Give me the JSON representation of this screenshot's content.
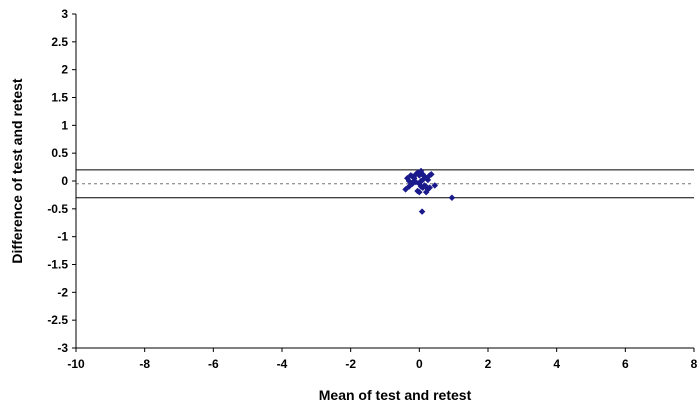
{
  "chart_data": {
    "type": "scatter",
    "title": "",
    "xlabel": "Mean of test and retest",
    "ylabel": "Difference of test and retest",
    "xlim": [
      -10,
      8
    ],
    "ylim": [
      -3,
      3
    ],
    "x_ticks": [
      -10,
      -8,
      -6,
      -4,
      -2,
      0,
      2,
      4,
      6,
      8
    ],
    "y_ticks": [
      3,
      2.5,
      2,
      1.5,
      1,
      0.5,
      0,
      -0.5,
      -1,
      -1.5,
      -2,
      -2.5,
      -3
    ],
    "grid": false,
    "legend": "none",
    "reference_lines": [
      {
        "y": 0.2,
        "style": "solid"
      },
      {
        "y": -0.05,
        "style": "dashed"
      },
      {
        "y": -0.3,
        "style": "solid"
      }
    ],
    "series": [
      {
        "color": "#1a1a8c",
        "points": [
          {
            "x": -0.35,
            "y": 0.05
          },
          {
            "x": -0.25,
            "y": 0.1
          },
          {
            "x": -0.2,
            "y": 0.08
          },
          {
            "x": -0.15,
            "y": 0.05
          },
          {
            "x": -0.1,
            "y": 0.12
          },
          {
            "x": -0.05,
            "y": 0.15
          },
          {
            "x": 0.0,
            "y": 0.1
          },
          {
            "x": 0.05,
            "y": 0.18
          },
          {
            "x": 0.1,
            "y": 0.12
          },
          {
            "x": 0.15,
            "y": 0.08
          },
          {
            "x": 0.2,
            "y": 0.05
          },
          {
            "x": 0.3,
            "y": 0.1
          },
          {
            "x": 0.35,
            "y": 0.12
          },
          {
            "x": -0.3,
            "y": -0.1
          },
          {
            "x": -0.4,
            "y": -0.15
          },
          {
            "x": -0.2,
            "y": -0.05
          },
          {
            "x": -0.1,
            "y": -0.02
          },
          {
            "x": 0.0,
            "y": -0.05
          },
          {
            "x": 0.05,
            "y": -0.1
          },
          {
            "x": 0.1,
            "y": -0.12
          },
          {
            "x": 0.15,
            "y": -0.08
          },
          {
            "x": 0.2,
            "y": -0.1
          },
          {
            "x": 0.25,
            "y": -0.15
          },
          {
            "x": 0.3,
            "y": -0.12
          },
          {
            "x": 0.45,
            "y": -0.08
          },
          {
            "x": -0.05,
            "y": -0.18
          },
          {
            "x": 0.05,
            "y": 0.0
          },
          {
            "x": 0.1,
            "y": 0.02
          },
          {
            "x": -0.15,
            "y": 0.0
          },
          {
            "x": 0.2,
            "y": -0.2
          },
          {
            "x": 0.0,
            "y": -0.2
          },
          {
            "x": 0.08,
            "y": -0.55
          },
          {
            "x": 0.95,
            "y": -0.3
          },
          {
            "x": -0.3,
            "y": 0.0
          },
          {
            "x": 0.25,
            "y": 0.02
          }
        ]
      }
    ]
  }
}
